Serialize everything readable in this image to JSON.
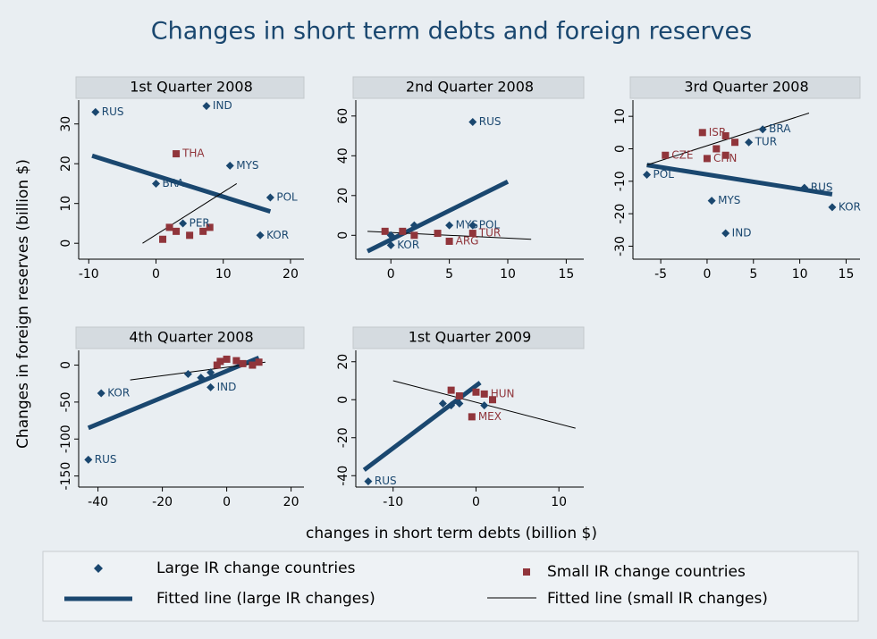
{
  "title": "Changes in short term debts and foreign reserves",
  "x_label": "changes in short term debts (billion $)",
  "y_label": "Changes in foreign reserves (billion $)",
  "legend": [
    {
      "name": "Large IR change countries",
      "color": "#1a476f"
    },
    {
      "name": "Small IR change countries",
      "color": "#90353b"
    },
    {
      "name": "Fitted line (large IR changes)",
      "color": "#1a476f"
    },
    {
      "name": "Fitted line (small IR changes)",
      "color": "#000000"
    }
  ],
  "chart_data": [
    {
      "type": "scatter",
      "title": "1st Quarter 2008",
      "xlim": [
        -11.5,
        22
      ],
      "ylim": [
        -4,
        36
      ],
      "xticks": [
        -10,
        0,
        10,
        20
      ],
      "yticks": [
        0,
        10,
        20,
        30
      ],
      "large": {
        "labels": [
          "RUS",
          "IND",
          "MYS",
          "BRA",
          "POL",
          "KOR",
          "PER"
        ],
        "x": [
          -9,
          7.5,
          11,
          0,
          17,
          15.5,
          4
        ],
        "values": [
          33,
          34.5,
          19.5,
          15,
          11.5,
          2,
          5
        ]
      },
      "small": {
        "labels": [
          "THA",
          null,
          null,
          null,
          null,
          null,
          null
        ],
        "x": [
          3,
          1,
          2,
          3,
          5,
          7,
          8
        ],
        "values": [
          22.5,
          1,
          4,
          3,
          2,
          3,
          4
        ]
      },
      "large_fit": {
        "x": [
          -9.5,
          17
        ],
        "values": [
          22,
          8
        ]
      },
      "small_fit": {
        "x": [
          -2,
          12
        ],
        "values": [
          0,
          15
        ]
      }
    },
    {
      "type": "scatter",
      "title": "2nd Quarter 2008",
      "xlim": [
        -3,
        16.5
      ],
      "ylim": [
        -12,
        68
      ],
      "xticks": [
        0,
        5,
        10,
        15
      ],
      "yticks": [
        0,
        20,
        40,
        60
      ],
      "large": {
        "labels": [
          "RUS",
          "MYS",
          "POL",
          "KOR",
          null,
          null
        ],
        "x": [
          7,
          5,
          7,
          0,
          2,
          0
        ],
        "values": [
          57,
          5,
          5,
          -5,
          5,
          0
        ]
      },
      "small": {
        "labels": [
          null,
          null,
          null,
          "ARG",
          "TUR",
          null
        ],
        "x": [
          -0.5,
          1,
          4,
          5,
          7,
          2
        ],
        "values": [
          2,
          2,
          1,
          -3,
          1,
          0
        ]
      },
      "large_fit": {
        "x": [
          -2,
          10
        ],
        "values": [
          -8,
          27
        ]
      },
      "small_fit": {
        "x": [
          -2,
          12
        ],
        "values": [
          2,
          -2
        ]
      }
    },
    {
      "type": "scatter",
      "title": "3rd Quarter 2008",
      "xlim": [
        -8,
        16.5
      ],
      "ylim": [
        -34,
        15
      ],
      "xticks": [
        -5,
        0,
        5,
        10,
        15
      ],
      "yticks": [
        -30,
        -20,
        -10,
        0,
        10
      ],
      "large": {
        "labels": [
          "POL",
          "MYS",
          "IND",
          "RUS",
          "KOR",
          "BRA",
          "TUR"
        ],
        "x": [
          -6.5,
          0.5,
          2,
          10.5,
          13.5,
          6,
          4.5
        ],
        "values": [
          -8,
          -16,
          -26,
          -12,
          -18,
          6,
          2
        ]
      },
      "small": {
        "labels": [
          "ISR",
          "CZE",
          null,
          null,
          "CHN",
          null,
          null
        ],
        "x": [
          -0.5,
          -4.5,
          2,
          1,
          0,
          3,
          2
        ],
        "values": [
          5,
          -2,
          -2,
          0,
          -3,
          2,
          4
        ]
      },
      "large_fit": {
        "x": [
          -6.5,
          13.5
        ],
        "values": [
          -5,
          -14
        ]
      },
      "small_fit": {
        "x": [
          -6.5,
          11
        ],
        "values": [
          -5,
          11
        ]
      }
    },
    {
      "type": "scatter",
      "title": "4th Quarter 2008",
      "xlim": [
        -46,
        24
      ],
      "ylim": [
        -165,
        20
      ],
      "xticks": [
        -40,
        -20,
        0,
        20
      ],
      "yticks": [
        -150,
        -100,
        -50,
        0
      ],
      "large": {
        "labels": [
          "KOR",
          "RUS",
          "IND",
          null,
          null,
          null
        ],
        "x": [
          -39,
          -43,
          -5,
          -12,
          -8,
          -5
        ],
        "values": [
          -38,
          -128,
          -30,
          -12,
          -17,
          -10
        ]
      },
      "small": {
        "labels": [
          null,
          null,
          null,
          null,
          null,
          null,
          null
        ],
        "x": [
          -2,
          0,
          3,
          5,
          8,
          10,
          -3
        ],
        "values": [
          5,
          8,
          6,
          2,
          0,
          4,
          0
        ]
      },
      "large_fit": {
        "x": [
          -43,
          10
        ],
        "values": [
          -85,
          10
        ]
      },
      "small_fit": {
        "x": [
          -30,
          12
        ],
        "values": [
          -20,
          4
        ]
      }
    },
    {
      "type": "scatter",
      "title": "1st Quarter 2009",
      "xlim": [
        -14.5,
        13
      ],
      "ylim": [
        -46,
        26
      ],
      "xticks": [
        -10,
        0,
        10
      ],
      "yticks": [
        -40,
        -20,
        0,
        20
      ],
      "large": {
        "labels": [
          "RUS",
          null,
          null,
          null,
          null
        ],
        "x": [
          -13,
          -4,
          -3,
          -2,
          1
        ],
        "values": [
          -43,
          -2,
          -3,
          -2,
          -3
        ]
      },
      "small": {
        "labels": [
          "MEX",
          "HUN",
          null,
          null,
          null,
          null
        ],
        "x": [
          -0.5,
          1,
          -3,
          -2,
          0,
          2
        ],
        "values": [
          -9,
          3,
          5,
          2,
          4,
          0
        ]
      },
      "large_fit": {
        "x": [
          -13.5,
          0.5
        ],
        "values": [
          -37,
          9
        ]
      },
      "small_fit": {
        "x": [
          -10,
          12
        ],
        "values": [
          10,
          -15
        ]
      }
    }
  ]
}
